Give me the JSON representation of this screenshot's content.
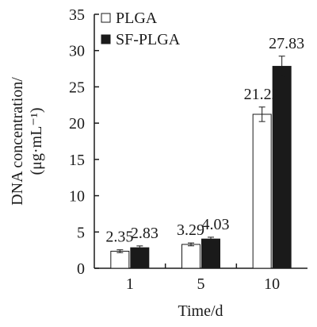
{
  "chart_data": {
    "type": "bar",
    "title": "",
    "categories": [
      "1",
      "5",
      "10"
    ],
    "series": [
      {
        "name": "PLGA",
        "values": [
          2.35,
          3.29,
          21.22
        ],
        "errors": [
          0.2,
          0.2,
          1.0
        ],
        "color": "#ffffff"
      },
      {
        "name": "SF-PLGA",
        "values": [
          2.83,
          4.03,
          27.83
        ],
        "errors": [
          0.25,
          0.25,
          1.4
        ],
        "color": "#1a1a1a"
      }
    ],
    "data_labels": [
      [
        "2.35",
        "3.29",
        "21.22"
      ],
      [
        "2.83",
        "4.03",
        "27.83"
      ]
    ],
    "xlabel": "Time/d",
    "ylabel_line1": "DNA concentration/",
    "ylabel_line2": "(μg·mL⁻¹)",
    "ylim": [
      0,
      35
    ],
    "yticks": [
      "0",
      "5",
      "10",
      "15",
      "20",
      "25",
      "30",
      "35"
    ],
    "legend_position": "top-left",
    "grid": false
  }
}
